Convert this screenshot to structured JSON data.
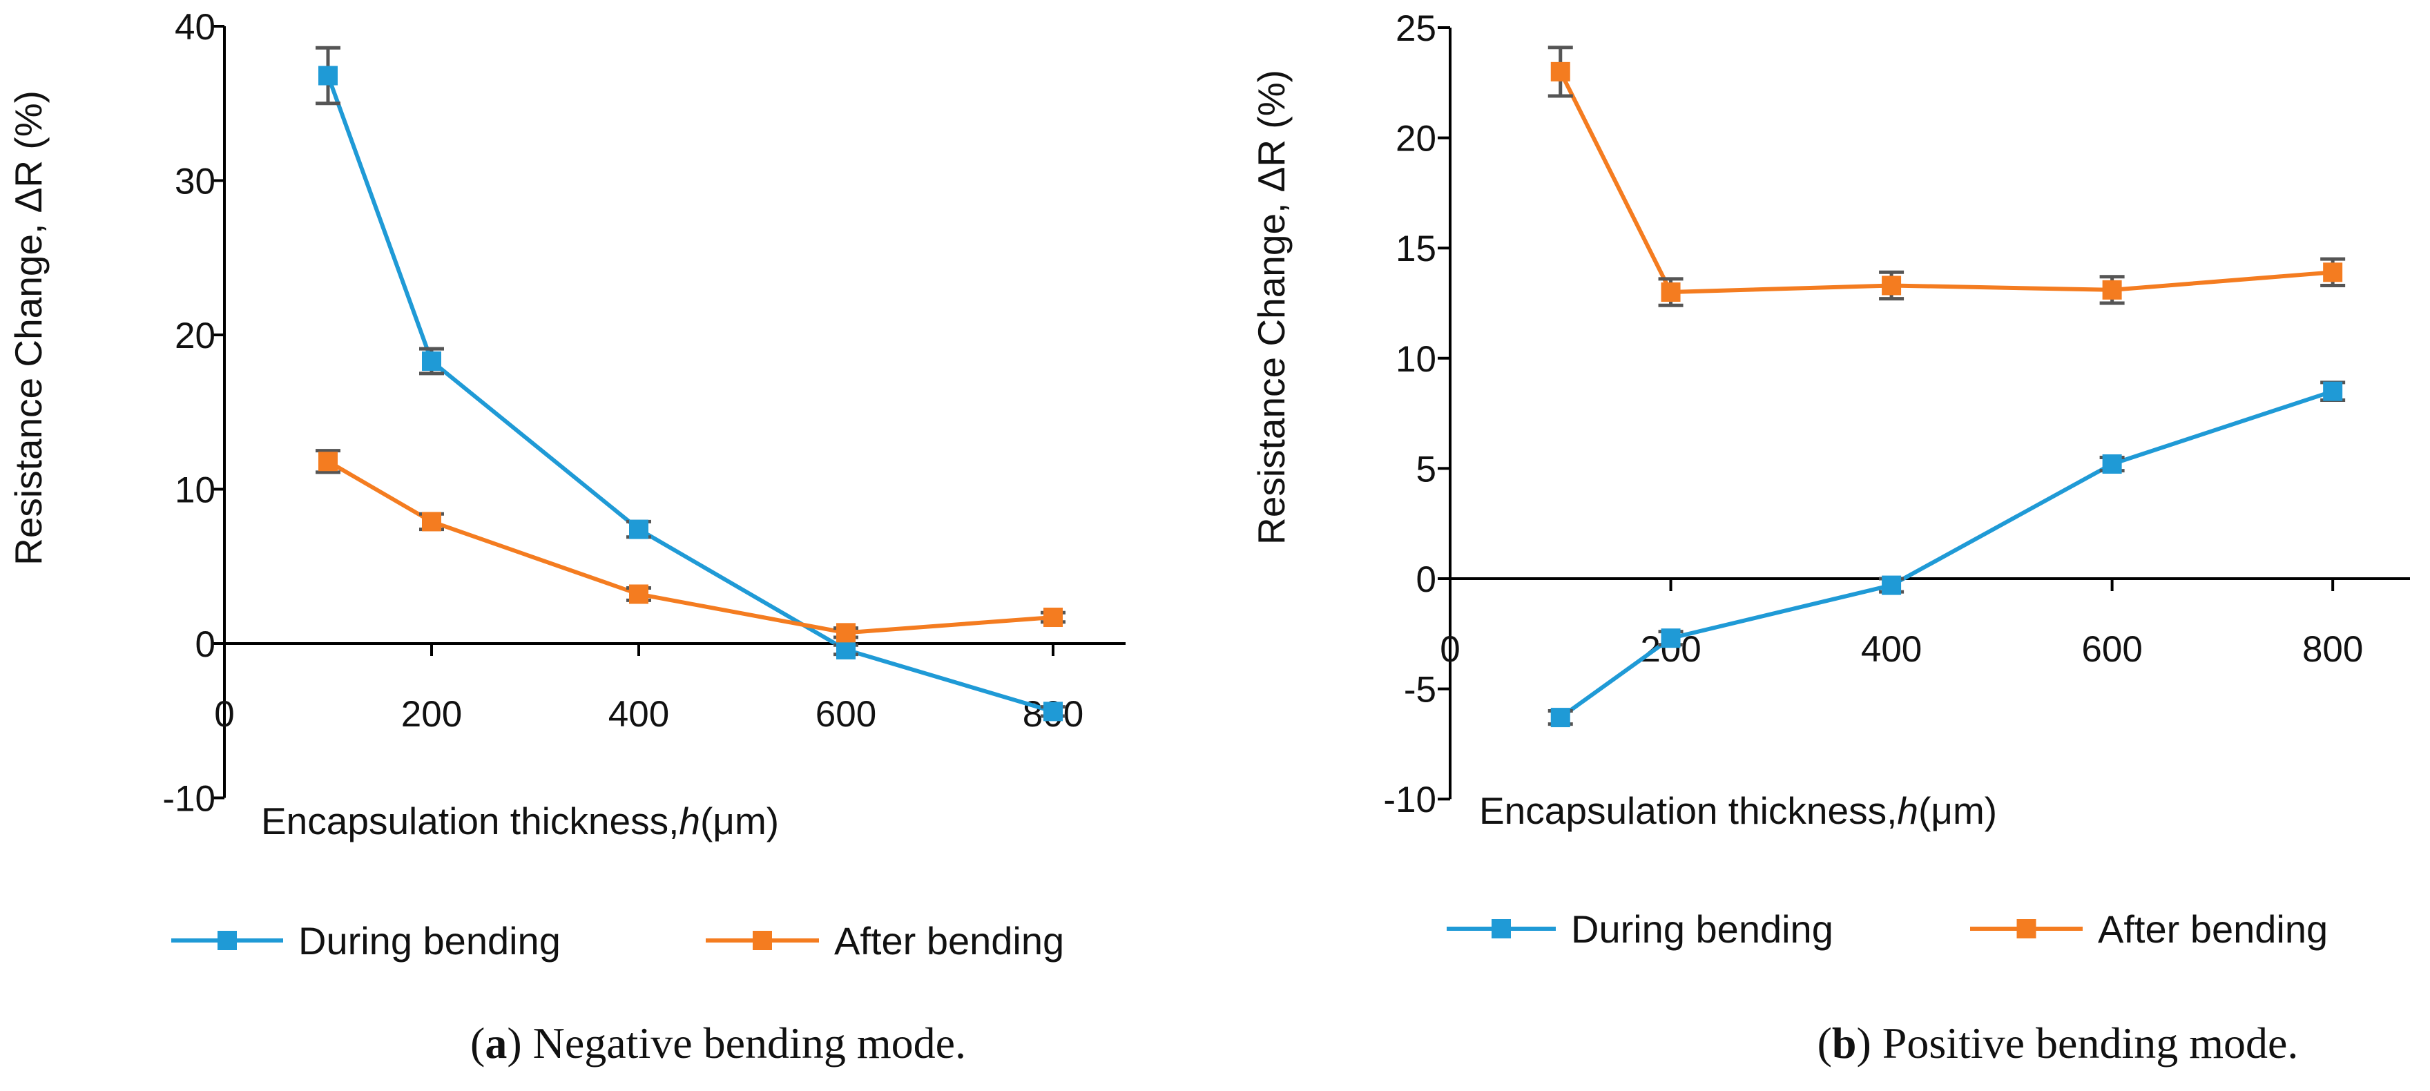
{
  "colors": {
    "during": "#1f9ad6",
    "after": "#f47c20",
    "errorbar": "#555555",
    "axis": "#000000"
  },
  "chart_data": [
    {
      "type": "line",
      "panel": "a",
      "caption_letter": "a",
      "caption_text": " Negative bending mode.",
      "caption_open": "(",
      "caption_close": ")",
      "xlabel_prefix": "Encapsulation thickness,",
      "xlabel_var": "h",
      "xlabel_unit": "(μm)",
      "ylabel": "Resistance Change, ΔR (%)",
      "xlim": [
        0,
        870
      ],
      "ylim": [
        -10,
        40
      ],
      "xticks": [
        0,
        200,
        400,
        600,
        800
      ],
      "xtick_labels": [
        "0",
        "200",
        "400",
        "600",
        "800"
      ],
      "yticks": [
        -10,
        0,
        10,
        20,
        30,
        40
      ],
      "ytick_labels": [
        "-10",
        "0",
        "10",
        "20",
        "30",
        "40"
      ],
      "legend_position": "bottom",
      "series": [
        {
          "name": "During bending",
          "color_key": "during",
          "x": [
            100,
            200,
            400,
            600,
            800
          ],
          "values": [
            36.8,
            18.3,
            7.4,
            -0.4,
            -4.4
          ],
          "errors": [
            1.8,
            0.8,
            0.5,
            0.3,
            0.3
          ]
        },
        {
          "name": "After bending",
          "color_key": "after",
          "x": [
            100,
            200,
            400,
            600,
            800
          ],
          "values": [
            11.8,
            7.9,
            3.2,
            0.7,
            1.7
          ],
          "errors": [
            0.7,
            0.5,
            0.4,
            0.3,
            0.3
          ]
        }
      ]
    },
    {
      "type": "line",
      "panel": "b",
      "caption_letter": "b",
      "caption_text": " Positive bending mode.",
      "caption_open": "(",
      "caption_close": ")",
      "xlabel_prefix": "Encapsulation thickness,",
      "xlabel_var": "h",
      "xlabel_unit": "(μm)",
      "ylabel": "Resistance Change, ΔR (%)",
      "xlim": [
        0,
        870
      ],
      "ylim": [
        -10,
        25
      ],
      "xticks": [
        0,
        200,
        400,
        600,
        800
      ],
      "xtick_labels": [
        "0",
        "200",
        "400",
        "600",
        "800"
      ],
      "yticks": [
        -10,
        -5,
        0,
        5,
        10,
        15,
        20,
        25
      ],
      "ytick_labels": [
        "-10",
        "-5",
        "0",
        "5",
        "10",
        "15",
        "20",
        "25"
      ],
      "legend_position": "bottom",
      "series": [
        {
          "name": "During bending",
          "color_key": "during",
          "x": [
            100,
            200,
            400,
            600,
            800
          ],
          "values": [
            -6.3,
            -2.7,
            -0.3,
            5.2,
            8.5
          ],
          "errors": [
            0.3,
            0.3,
            0.3,
            0.3,
            0.4
          ]
        },
        {
          "name": "After bending",
          "color_key": "after",
          "x": [
            100,
            200,
            400,
            600,
            800
          ],
          "values": [
            23.0,
            13.0,
            13.3,
            13.1,
            13.9
          ],
          "errors": [
            1.1,
            0.6,
            0.6,
            0.6,
            0.6
          ]
        }
      ]
    }
  ]
}
